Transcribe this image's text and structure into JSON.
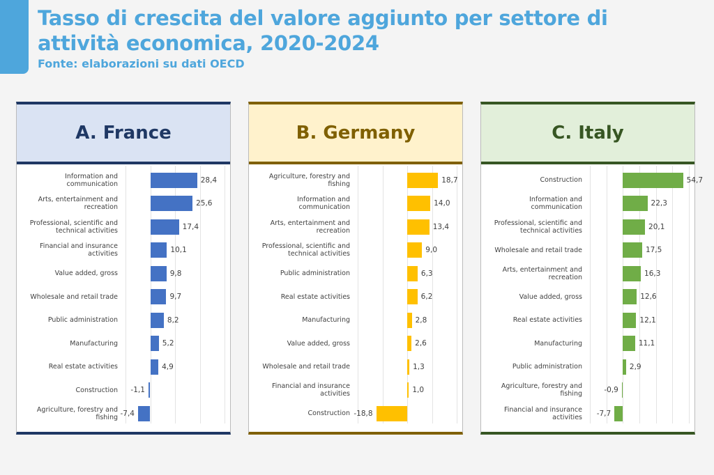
{
  "header": {
    "title": "Tasso di crescita del valore aggiunto per settore di attività economica, 2020-2024",
    "source": "Fonte: elaborazioni su dati OECD"
  },
  "chart_data": [
    {
      "type": "bar",
      "orientation": "horizontal",
      "title": "A. France",
      "color": "#4472c4",
      "header_bg": "#dae3f3",
      "header_color": "#1f3864",
      "xlim": [
        -15,
        45
      ],
      "xticks_step": 15,
      "grid": true,
      "categories": [
        "Information and communication",
        "Arts, entertainment and recreation",
        "Professional, scientific and technical activities",
        "Financial and insurance activities",
        "Value added, gross",
        "Wholesale and retail trade",
        "Public administration",
        "Manufacturing",
        "Real estate activities",
        "Construction",
        "Agriculture, forestry and fishing"
      ],
      "values": [
        28.4,
        25.6,
        17.4,
        10.1,
        9.8,
        9.7,
        8.2,
        5.2,
        4.9,
        -1.1,
        -7.4
      ],
      "labels": [
        "28,4",
        "25,6",
        "17,4",
        "10,1",
        "9,8",
        "9,7",
        "8,2",
        "5,2",
        "4,9",
        "-1,1",
        "-7,4"
      ]
    },
    {
      "type": "bar",
      "orientation": "horizontal",
      "title": "B. Germany",
      "color": "#ffc000",
      "header_bg": "#fff2cc",
      "header_color": "#7f6000",
      "xlim": [
        -30,
        30
      ],
      "xticks_step": 15,
      "grid": true,
      "categories": [
        "Agriculture, forestry and fishing",
        "Information and communication",
        "Arts, entertainment and recreation",
        "Professional, scientific and technical activities",
        "Public administration",
        "Real estate activities",
        "Manufacturing",
        "Value added, gross",
        "Wholesale and retail trade",
        "Financial and insurance activities",
        "Construction"
      ],
      "values": [
        18.7,
        14.0,
        13.4,
        9.0,
        6.3,
        6.2,
        2.8,
        2.6,
        1.3,
        1.0,
        -18.8
      ],
      "labels": [
        "18,7",
        "14,0",
        "13,4",
        "9,0",
        "6,3",
        "6,2",
        "2,8",
        "2,6",
        "1,3",
        "1,0",
        "-18,8"
      ]
    },
    {
      "type": "bar",
      "orientation": "horizontal",
      "title": "C. Italy",
      "color": "#70ad47",
      "header_bg": "#e2efda",
      "header_color": "#375623",
      "xlim": [
        -30,
        60
      ],
      "xticks_step": 15,
      "grid": true,
      "categories": [
        "Construction",
        "Information and communication",
        "Professional, scientific and technical activities",
        "Wholesale and retail trade",
        "Arts, entertainment and recreation",
        "Value added, gross",
        "Real estate activities",
        "Manufacturing",
        "Public administration",
        "Agriculture, forestry and fishing",
        "Financial and insurance activities"
      ],
      "values": [
        54.7,
        22.3,
        20.1,
        17.5,
        16.3,
        12.6,
        12.1,
        11.1,
        2.9,
        -0.9,
        -7.7
      ],
      "labels": [
        "54,7",
        "22,3",
        "20,1",
        "17,5",
        "16,3",
        "12,6",
        "12,1",
        "11,1",
        "2,9",
        "-0,9",
        "-7,7"
      ]
    }
  ]
}
